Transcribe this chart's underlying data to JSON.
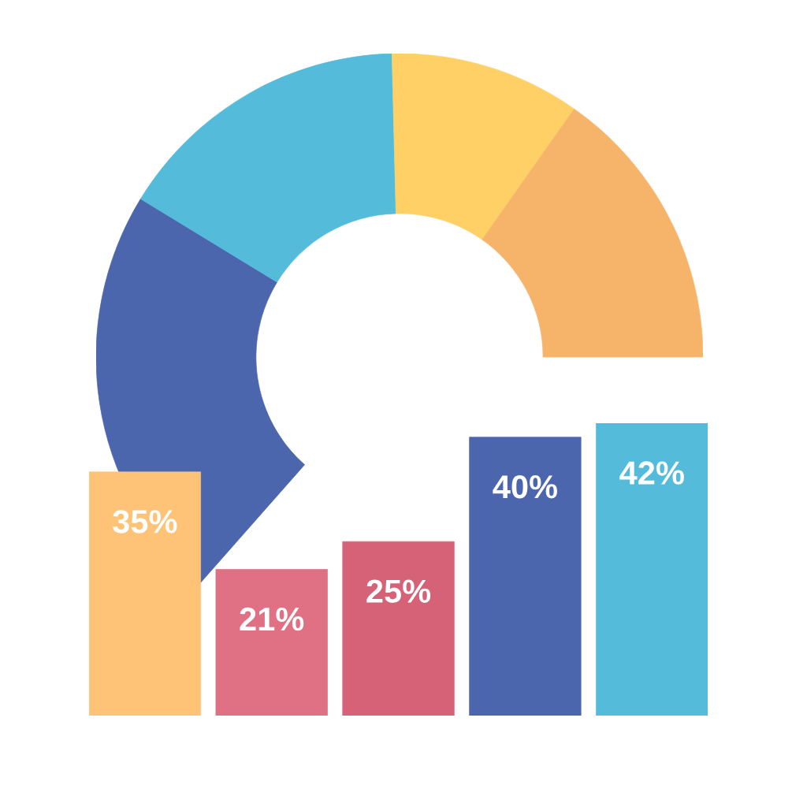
{
  "chart_data": [
    {
      "type": "donut",
      "categories": [
        null,
        null,
        null,
        null
      ],
      "values": [
        35,
        25,
        16,
        24
      ],
      "colors": [
        "#4c66ae",
        "#54bbdb",
        "#fed065",
        "#f6b46a"
      ]
    },
    {
      "type": "bar",
      "categories": [
        null,
        null,
        null,
        null,
        null
      ],
      "values": [
        35,
        21,
        25,
        40,
        42
      ],
      "colors": [
        "#fec377",
        "#e07084",
        "#d66278",
        "#4c66ae",
        "#54bbdb"
      ],
      "value_labels": [
        "35%",
        "21%",
        "25%",
        "40%",
        "42%"
      ]
    }
  ]
}
